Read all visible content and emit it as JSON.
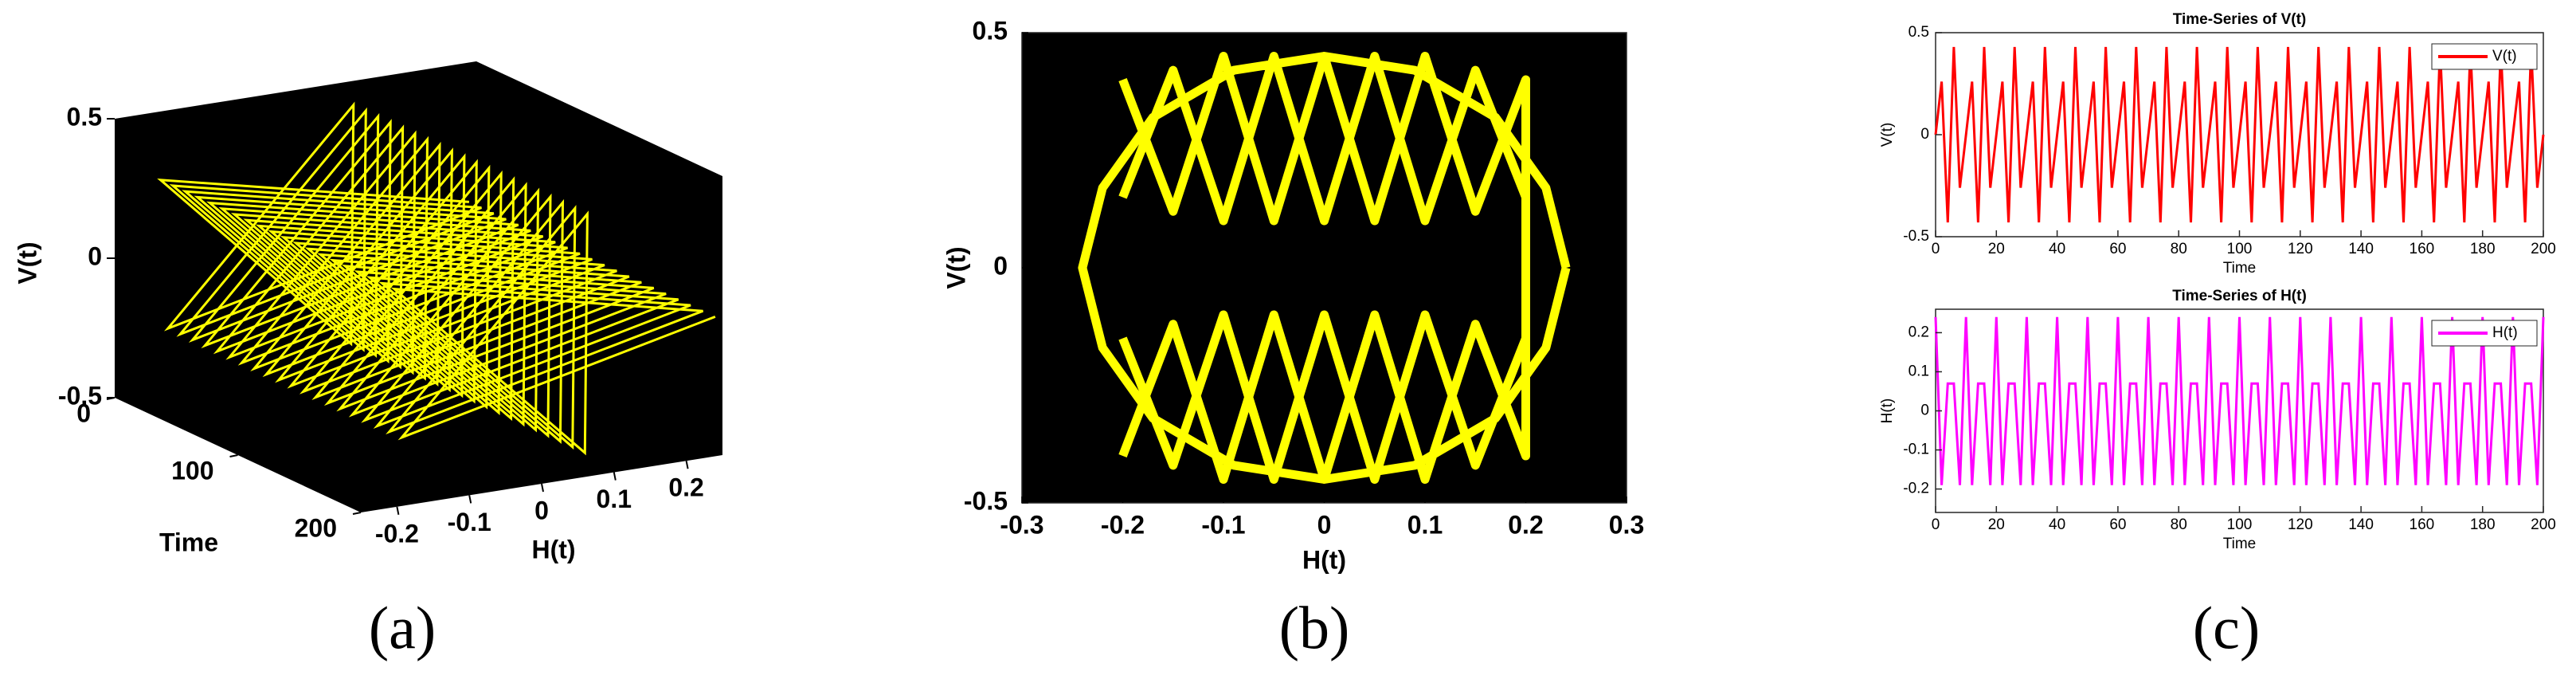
{
  "chart_data": [
    {
      "type": "line3d",
      "caption": "(a)",
      "xlabel": "Time",
      "ylabel": "H(t)",
      "zlabel": "V(t)",
      "color": "#ffff00",
      "background": "#000000",
      "xlim": [
        0,
        200
      ],
      "ylim": [
        -0.25,
        0.25
      ],
      "zlim": [
        -0.5,
        0.5
      ],
      "xticks": [
        0,
        100,
        200
      ],
      "yticks": [
        -0.2,
        -0.1,
        0,
        0.1,
        0.2
      ],
      "zticks": [
        -0.5,
        0,
        0.5
      ],
      "x": [
        0,
        2,
        4,
        6,
        8,
        10,
        12,
        14,
        16,
        18,
        20,
        22,
        24,
        26,
        28,
        30,
        32,
        34,
        36,
        38,
        40,
        42,
        44,
        46,
        48,
        50,
        52,
        54,
        56,
        58,
        60,
        62,
        64,
        66,
        68,
        70,
        72,
        74,
        76,
        78,
        80,
        82,
        84,
        86,
        88,
        90,
        92,
        94,
        96,
        98,
        100,
        102,
        104,
        106,
        108,
        110,
        112,
        114,
        116,
        118,
        120,
        122,
        124,
        126,
        128,
        130,
        132,
        134,
        136,
        138,
        140,
        142,
        144,
        146,
        148,
        150,
        152,
        154,
        156,
        158,
        160,
        162,
        164,
        166,
        168,
        170,
        172,
        174,
        176,
        178,
        180,
        182,
        184,
        186,
        188,
        190,
        192,
        194,
        196,
        198,
        200
      ],
      "y": [
        0.24,
        -0.19,
        0.07,
        0.07,
        -0.19,
        0.24,
        -0.19,
        0.07,
        0.07,
        -0.19,
        0.24,
        -0.19,
        0.07,
        0.07,
        -0.19,
        0.24,
        -0.19,
        0.07,
        0.07,
        -0.19,
        0.24,
        -0.19,
        0.07,
        0.07,
        -0.19,
        0.24,
        -0.19,
        0.07,
        0.07,
        -0.19,
        0.24,
        -0.19,
        0.07,
        0.07,
        -0.19,
        0.24,
        -0.19,
        0.07,
        0.07,
        -0.19,
        0.24,
        -0.19,
        0.07,
        0.07,
        -0.19,
        0.24,
        -0.19,
        0.07,
        0.07,
        -0.19,
        0.24,
        -0.19,
        0.07,
        0.07,
        -0.19,
        0.24,
        -0.19,
        0.07,
        0.07,
        -0.19,
        0.24,
        -0.19,
        0.07,
        0.07,
        -0.19,
        0.24,
        -0.19,
        0.07,
        0.07,
        -0.19,
        0.24,
        -0.19,
        0.07,
        0.07,
        -0.19,
        0.24,
        -0.19,
        0.07,
        0.07,
        -0.19,
        0.24,
        -0.19,
        0.07,
        0.07,
        -0.19,
        0.24,
        -0.19,
        0.07,
        0.07,
        -0.19,
        0.24,
        -0.19,
        0.07,
        0.07,
        -0.19,
        0.24,
        -0.19,
        0.07,
        0.07,
        -0.19,
        0.24
      ],
      "z": [
        0,
        0.26,
        -0.43,
        0.43,
        -0.26,
        0,
        0.26,
        -0.43,
        0.43,
        -0.26,
        0,
        0.26,
        -0.43,
        0.43,
        -0.26,
        0,
        0.26,
        -0.43,
        0.43,
        -0.26,
        0,
        0.26,
        -0.43,
        0.43,
        -0.26,
        0,
        0.26,
        -0.43,
        0.43,
        -0.26,
        0,
        0.26,
        -0.43,
        0.43,
        -0.26,
        0,
        0.26,
        -0.43,
        0.43,
        -0.26,
        0,
        0.26,
        -0.43,
        0.43,
        -0.26,
        0,
        0.26,
        -0.43,
        0.43,
        -0.26,
        0,
        0.26,
        -0.43,
        0.43,
        -0.26,
        0,
        0.26,
        -0.43,
        0.43,
        -0.26,
        0,
        0.26,
        -0.43,
        0.43,
        -0.26,
        0,
        0.26,
        -0.43,
        0.43,
        -0.26,
        0,
        0.26,
        -0.43,
        0.43,
        -0.26,
        0,
        0.26,
        -0.43,
        0.43,
        -0.26,
        0,
        0.26,
        -0.43,
        0.43,
        -0.26,
        0,
        0.26,
        -0.43,
        0.43,
        -0.26,
        0,
        0.26,
        -0.43,
        0.43,
        -0.26,
        0,
        0.26,
        -0.43,
        0.43,
        -0.26,
        0
      ]
    },
    {
      "type": "line",
      "caption": "(b)",
      "xlabel": "H(t)",
      "ylabel": "V(t)",
      "color": "#ffff00",
      "background": "#000000",
      "xlim": [
        -0.3,
        0.3
      ],
      "ylim": [
        -0.5,
        0.5
      ],
      "xticks": [
        -0.3,
        -0.2,
        -0.1,
        0,
        0.1,
        0.2,
        0.3
      ],
      "yticks": [
        -0.5,
        0,
        0.5
      ],
      "x": [
        0.24,
        0.22,
        0.17,
        0.09,
        0,
        -0.09,
        -0.17,
        -0.22,
        -0.24,
        -0.22,
        -0.17,
        -0.09,
        0,
        0.09,
        0.17,
        0.22,
        0.24,
        null,
        -0.2,
        -0.15,
        -0.1,
        -0.05,
        0,
        0.05,
        0.1,
        0.15,
        0.2,
        0.2,
        0.15,
        0.1,
        0.05,
        0,
        -0.05,
        -0.1,
        -0.15,
        -0.2,
        null,
        -0.2,
        -0.15,
        -0.1,
        -0.05,
        0,
        0.05,
        0.1,
        0.15,
        0.2,
        0.2,
        0.15,
        0.1,
        0.05,
        0,
        -0.05,
        -0.1,
        -0.15,
        -0.2
      ],
      "values": [
        0,
        0.17,
        0.32,
        0.42,
        0.45,
        0.42,
        0.32,
        0.17,
        0,
        -0.17,
        -0.32,
        -0.42,
        -0.45,
        -0.42,
        -0.32,
        -0.17,
        0,
        null,
        0.15,
        0.42,
        0.1,
        0.45,
        0.1,
        0.45,
        0.1,
        0.42,
        0.15,
        -0.15,
        -0.42,
        -0.1,
        -0.45,
        -0.1,
        -0.45,
        -0.1,
        -0.42,
        -0.15,
        null,
        0.4,
        0.12,
        0.45,
        0.1,
        0.45,
        0.1,
        0.45,
        0.12,
        0.4,
        -0.4,
        -0.12,
        -0.45,
        -0.1,
        -0.45,
        -0.1,
        -0.45,
        -0.12,
        -0.4
      ]
    },
    {
      "type": "line",
      "caption": "(c)",
      "title": "Time-Series of  V(t)",
      "xlabel": "Time",
      "ylabel": "V(t)",
      "legend": "northeast",
      "background": "#ffffff",
      "xlim": [
        0,
        200
      ],
      "ylim": [
        -0.5,
        0.5
      ],
      "xticks": [
        0,
        20,
        40,
        60,
        80,
        100,
        120,
        140,
        160,
        180,
        200
      ],
      "yticks": [
        -0.5,
        0,
        0.5
      ],
      "x": [
        0,
        2,
        4,
        6,
        8,
        10,
        12,
        14,
        16,
        18,
        20,
        22,
        24,
        26,
        28,
        30,
        32,
        34,
        36,
        38,
        40,
        42,
        44,
        46,
        48,
        50,
        52,
        54,
        56,
        58,
        60,
        62,
        64,
        66,
        68,
        70,
        72,
        74,
        76,
        78,
        80,
        82,
        84,
        86,
        88,
        90,
        92,
        94,
        96,
        98,
        100,
        102,
        104,
        106,
        108,
        110,
        112,
        114,
        116,
        118,
        120,
        122,
        124,
        126,
        128,
        130,
        132,
        134,
        136,
        138,
        140,
        142,
        144,
        146,
        148,
        150,
        152,
        154,
        156,
        158,
        160,
        162,
        164,
        166,
        168,
        170,
        172,
        174,
        176,
        178,
        180,
        182,
        184,
        186,
        188,
        190,
        192,
        194,
        196,
        198,
        200
      ],
      "series": [
        {
          "name": "V(t)",
          "color": "#ff0000",
          "values": [
            0,
            0.26,
            -0.43,
            0.43,
            -0.26,
            0,
            0.26,
            -0.43,
            0.43,
            -0.26,
            0,
            0.26,
            -0.43,
            0.43,
            -0.26,
            0,
            0.26,
            -0.43,
            0.43,
            -0.26,
            0,
            0.26,
            -0.43,
            0.43,
            -0.26,
            0,
            0.26,
            -0.43,
            0.43,
            -0.26,
            0,
            0.26,
            -0.43,
            0.43,
            -0.26,
            0,
            0.26,
            -0.43,
            0.43,
            -0.26,
            0,
            0.26,
            -0.43,
            0.43,
            -0.26,
            0,
            0.26,
            -0.43,
            0.43,
            -0.26,
            0,
            0.26,
            -0.43,
            0.43,
            -0.26,
            0,
            0.26,
            -0.43,
            0.43,
            -0.26,
            0,
            0.26,
            -0.43,
            0.43,
            -0.26,
            0,
            0.26,
            -0.43,
            0.43,
            -0.26,
            0,
            0.26,
            -0.43,
            0.43,
            -0.26,
            0,
            0.26,
            -0.43,
            0.43,
            -0.26,
            0,
            0.26,
            -0.43,
            0.43,
            -0.26,
            0,
            0.26,
            -0.43,
            0.43,
            -0.26,
            0,
            0.26,
            -0.43,
            0.43,
            -0.26,
            0,
            0.26,
            -0.43,
            0.43,
            -0.26,
            0
          ]
        }
      ]
    },
    {
      "type": "line",
      "title": "Time-Series of H(t)",
      "xlabel": "Time",
      "ylabel": "H(t)",
      "legend": "northeast",
      "background": "#ffffff",
      "xlim": [
        0,
        200
      ],
      "ylim": [
        -0.26,
        0.26
      ],
      "xticks": [
        0,
        20,
        40,
        60,
        80,
        100,
        120,
        140,
        160,
        180,
        200
      ],
      "yticks": [
        -0.2,
        -0.1,
        0,
        0.1,
        0.2
      ],
      "x": [
        0,
        2,
        4,
        6,
        8,
        10,
        12,
        14,
        16,
        18,
        20,
        22,
        24,
        26,
        28,
        30,
        32,
        34,
        36,
        38,
        40,
        42,
        44,
        46,
        48,
        50,
        52,
        54,
        56,
        58,
        60,
        62,
        64,
        66,
        68,
        70,
        72,
        74,
        76,
        78,
        80,
        82,
        84,
        86,
        88,
        90,
        92,
        94,
        96,
        98,
        100,
        102,
        104,
        106,
        108,
        110,
        112,
        114,
        116,
        118,
        120,
        122,
        124,
        126,
        128,
        130,
        132,
        134,
        136,
        138,
        140,
        142,
        144,
        146,
        148,
        150,
        152,
        154,
        156,
        158,
        160,
        162,
        164,
        166,
        168,
        170,
        172,
        174,
        176,
        178,
        180,
        182,
        184,
        186,
        188,
        190,
        192,
        194,
        196,
        198,
        200
      ],
      "series": [
        {
          "name": "H(t)",
          "color": "#ff00ff",
          "values": [
            0.24,
            -0.19,
            0.07,
            0.07,
            -0.19,
            0.24,
            -0.19,
            0.07,
            0.07,
            -0.19,
            0.24,
            -0.19,
            0.07,
            0.07,
            -0.19,
            0.24,
            -0.19,
            0.07,
            0.07,
            -0.19,
            0.24,
            -0.19,
            0.07,
            0.07,
            -0.19,
            0.24,
            -0.19,
            0.07,
            0.07,
            -0.19,
            0.24,
            -0.19,
            0.07,
            0.07,
            -0.19,
            0.24,
            -0.19,
            0.07,
            0.07,
            -0.19,
            0.24,
            -0.19,
            0.07,
            0.07,
            -0.19,
            0.24,
            -0.19,
            0.07,
            0.07,
            -0.19,
            0.24,
            -0.19,
            0.07,
            0.07,
            -0.19,
            0.24,
            -0.19,
            0.07,
            0.07,
            -0.19,
            0.24,
            -0.19,
            0.07,
            0.07,
            -0.19,
            0.24,
            -0.19,
            0.07,
            0.07,
            -0.19,
            0.24,
            -0.19,
            0.07,
            0.07,
            -0.19,
            0.24,
            -0.19,
            0.07,
            0.07,
            -0.19,
            0.24,
            -0.19,
            0.07,
            0.07,
            -0.19,
            0.24,
            -0.19,
            0.07,
            0.07,
            -0.19,
            0.24,
            -0.19,
            0.07,
            0.07,
            -0.19,
            0.24,
            -0.19,
            0.07,
            0.07,
            -0.19,
            0.24
          ]
        }
      ]
    }
  ]
}
